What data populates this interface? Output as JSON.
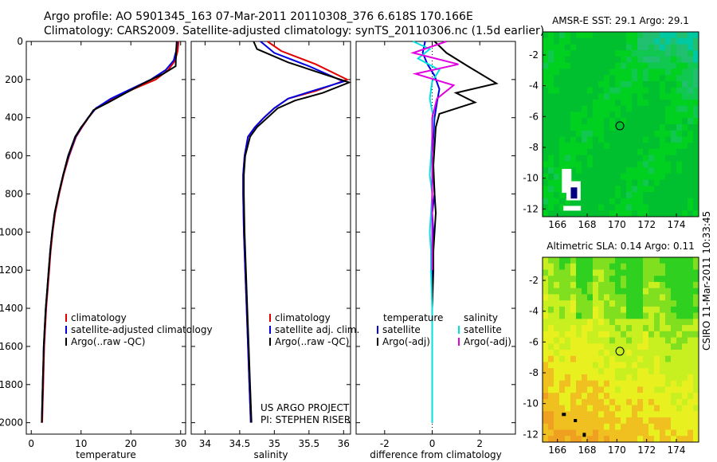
{
  "header": {
    "line1": "Argo profile: AO 5901345_163 07-Mar-2011 20110308_376 6.618S 170.166E",
    "line2": "Climatology: CARS2009. Satellite-adjusted climatology: synTS_20110306.nc (1.5d earlier)"
  },
  "stamp": "CSIRO 11-Mar-2011 10:33:45",
  "colors": {
    "red": "#e00000",
    "blue": "#0000e0",
    "black": "#000000",
    "cyan": "#00e0e0",
    "magenta": "#e000e0"
  },
  "chart_data": [
    {
      "type": "line",
      "xlabel": "temperature",
      "ylabel": "",
      "xlim": [
        -1,
        31
      ],
      "ylim": [
        2060,
        0
      ],
      "y_reversed": true,
      "xticks": [
        0,
        10,
        20,
        30
      ],
      "yticks": [
        0,
        200,
        400,
        600,
        800,
        1000,
        1200,
        1400,
        1600,
        1800,
        2000
      ],
      "legend": {
        "placement": "bottom-left",
        "entries": [
          "climatology",
          "satellite-adjusted climatology",
          "Argo(..raw -QC)"
        ]
      },
      "series": [
        {
          "name": "climatology",
          "color": "red",
          "x": [
            29.6,
            29.4,
            28.9,
            27.5,
            25.0,
            20.5,
            16.5,
            13.0,
            11.5,
            10.2,
            9.0,
            7.6,
            6.5,
            5.6,
            4.8,
            4.3,
            3.9,
            3.6,
            3.3,
            3.0,
            2.8,
            2.6,
            2.5,
            2.4,
            2.3,
            2.2
          ],
          "y": [
            0,
            50,
            100,
            150,
            200,
            250,
            300,
            350,
            400,
            450,
            500,
            600,
            700,
            800,
            900,
            1000,
            1100,
            1200,
            1300,
            1400,
            1500,
            1600,
            1700,
            1800,
            1900,
            2000
          ]
        },
        {
          "name": "satellite-adjusted climatology",
          "color": "blue",
          "x": [
            29.3,
            29.1,
            28.6,
            27.0,
            24.0,
            20.0,
            16.0,
            13.0,
            11.4,
            10.1,
            8.9,
            7.5,
            6.4,
            5.5,
            4.7,
            4.2,
            3.8,
            3.5,
            3.2,
            2.9,
            2.7,
            2.5,
            2.4,
            2.3,
            2.2,
            2.1
          ],
          "y": [
            0,
            50,
            100,
            150,
            200,
            250,
            300,
            350,
            400,
            450,
            500,
            600,
            700,
            800,
            900,
            1000,
            1100,
            1200,
            1300,
            1400,
            1500,
            1600,
            1700,
            1800,
            1900,
            2000
          ]
        },
        {
          "name": "Argo(..raw -QC)",
          "color": "black",
          "x": [
            29.2,
            29.1,
            29.0,
            26.5,
            22.5,
            19.0,
            15.5,
            12.5,
            11.2,
            10.0,
            8.8,
            7.4,
            6.4,
            5.5,
            4.7,
            4.2,
            3.8,
            3.5,
            3.2,
            2.9,
            2.7,
            2.5,
            2.4,
            2.3,
            2.2,
            2.1
          ],
          "y": [
            0,
            50,
            130,
            170,
            220,
            270,
            320,
            360,
            410,
            450,
            500,
            600,
            700,
            800,
            900,
            1000,
            1100,
            1200,
            1300,
            1400,
            1500,
            1600,
            1700,
            1800,
            1900,
            2000
          ]
        }
      ]
    },
    {
      "type": "line",
      "xlabel": "salinity",
      "ylabel": "",
      "xlim": [
        33.8,
        36.1
      ],
      "ylim": [
        2060,
        0
      ],
      "y_reversed": true,
      "xticks": [
        34,
        34.5,
        35,
        35.5,
        36
      ],
      "legend": {
        "placement": "bottom-right",
        "entries": [
          "climatology",
          "satellite adj. clim.",
          "Argo(..raw -QC)"
        ]
      },
      "annotation": {
        "line1": "US ARGO PROJECT",
        "line2": "PI: STEPHEN RISER"
      },
      "series": [
        {
          "name": "climatology",
          "color": "red",
          "x": [
            34.9,
            35.1,
            35.6,
            36.05,
            35.6,
            35.2,
            35.0,
            34.85,
            34.72,
            34.62,
            34.57,
            34.55,
            34.55,
            34.56,
            34.58,
            34.6,
            34.62,
            34.64,
            34.66
          ],
          "y": [
            0,
            50,
            120,
            200,
            260,
            300,
            350,
            400,
            450,
            500,
            600,
            700,
            800,
            1000,
            1200,
            1400,
            1600,
            1800,
            2000
          ]
        },
        {
          "name": "satellite adj. clim.",
          "color": "blue",
          "x": [
            34.8,
            35.0,
            35.5,
            36.0,
            35.55,
            35.2,
            35.0,
            34.85,
            34.72,
            34.62,
            34.57,
            34.55,
            34.55,
            34.56,
            34.58,
            34.6,
            34.62,
            34.64,
            34.66
          ],
          "y": [
            0,
            60,
            130,
            210,
            260,
            300,
            350,
            400,
            450,
            500,
            600,
            700,
            800,
            1000,
            1200,
            1400,
            1600,
            1800,
            2000
          ]
        },
        {
          "name": "Argo(..raw -QC)",
          "color": "black",
          "x": [
            34.7,
            34.75,
            35.2,
            36.08,
            35.7,
            35.3,
            35.05,
            34.9,
            34.75,
            34.65,
            34.58,
            34.56,
            34.56,
            34.57,
            34.59,
            34.61,
            34.63,
            34.65,
            34.67
          ],
          "y": [
            0,
            40,
            110,
            215,
            270,
            310,
            350,
            400,
            450,
            500,
            600,
            700,
            800,
            1000,
            1200,
            1400,
            1600,
            1800,
            2000
          ]
        }
      ]
    },
    {
      "type": "line",
      "xlabel": "difference from climatology",
      "ylabel": "",
      "xlim": [
        -3.2,
        3.5
      ],
      "ylim": [
        2060,
        0
      ],
      "y_reversed": true,
      "xticks": [
        -2,
        0,
        2
      ],
      "legend": {
        "placement": "bottom",
        "entries": [
          "temperature",
          "satellite",
          "Argo(-adj)",
          "salinity",
          "satellite",
          "Argo(-adj)"
        ]
      },
      "series": [
        {
          "name": "temperature satellite",
          "color": "blue",
          "x": [
            -0.3,
            -0.4,
            -0.2,
            0.1,
            0.3,
            0.2,
            0.1,
            0.05,
            0.0,
            0.05,
            0.1,
            0.0,
            0.05,
            0.0,
            0.0,
            0.0,
            0.0,
            0.0,
            0.0,
            0.0
          ],
          "y": [
            0,
            60,
            120,
            180,
            250,
            320,
            400,
            500,
            600,
            700,
            800,
            900,
            1000,
            1100,
            1200,
            1400,
            1600,
            1800,
            1900,
            2000
          ]
        },
        {
          "name": "temperature Argo(-adj)",
          "color": "black",
          "x": [
            0.1,
            0.6,
            1.5,
            2.7,
            1.0,
            1.8,
            0.3,
            0.15,
            0.1,
            0.05,
            0.1,
            0.15,
            0.1,
            0.05,
            0.05,
            0.0,
            0.0,
            0.0,
            0.0,
            0.0
          ],
          "y": [
            0,
            60,
            130,
            220,
            270,
            320,
            380,
            450,
            550,
            650,
            800,
            900,
            1000,
            1100,
            1200,
            1400,
            1600,
            1800,
            1900,
            2000
          ]
        },
        {
          "name": "salinity satellite",
          "color": "cyan",
          "x": [
            -0.8,
            -0.1,
            -0.6,
            0.3,
            0.0,
            -0.1,
            0.05,
            0.0,
            -0.05,
            -0.1,
            0.0,
            -0.05,
            -0.1,
            -0.05,
            -0.05,
            0.0,
            0.0,
            0.0,
            0.0,
            0.0
          ],
          "y": [
            0,
            40,
            90,
            150,
            210,
            300,
            400,
            500,
            600,
            700,
            800,
            900,
            1000,
            1100,
            1200,
            1400,
            1600,
            1800,
            1900,
            2000
          ]
        },
        {
          "name": "salinity Argo(-adj)",
          "color": "magenta",
          "x": [
            0.6,
            -0.8,
            1.1,
            -0.7,
            0.9,
            0.2,
            0.0,
            0.0,
            0.0,
            0.0,
            0.0
          ],
          "y": [
            0,
            60,
            120,
            170,
            230,
            300,
            400,
            600,
            800,
            1000,
            1200
          ]
        }
      ]
    },
    {
      "type": "heatmap",
      "title": "AMSR-E SST: 29.1  Argo: 29.1",
      "xlim": [
        165,
        175.5
      ],
      "ylim": [
        -12.5,
        -0.5
      ],
      "xticks": [
        166,
        168,
        170,
        172,
        174
      ],
      "yticks": [
        -2,
        -4,
        -6,
        -8,
        -10,
        -12
      ],
      "marker": {
        "x": 170.2,
        "y": -6.6
      },
      "palette": [
        "#00c030",
        "#00d020",
        "#10c850",
        "#20c070",
        "#00c8a0",
        "#10c0d0"
      ]
    },
    {
      "type": "heatmap",
      "title": "Altimetric SLA: 0.14  Argo: 0.11",
      "xlim": [
        165,
        175.5
      ],
      "ylim": [
        -12.5,
        -0.5
      ],
      "xticks": [
        166,
        168,
        170,
        172,
        174
      ],
      "yticks": [
        -2,
        -4,
        -6,
        -8,
        -10,
        -12
      ],
      "marker": {
        "x": 170.2,
        "y": -6.6
      },
      "palette": [
        "#30d020",
        "#80e020",
        "#c8f020",
        "#e8f020",
        "#f0c020",
        "#f0a020"
      ]
    }
  ]
}
